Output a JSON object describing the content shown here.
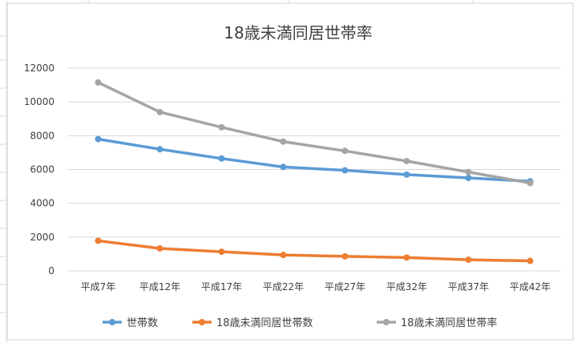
{
  "chart_data": {
    "type": "line",
    "title": "18歳未満同居世帯率",
    "categories": [
      "平成7年",
      "平成12年",
      "平成17年",
      "平成22年",
      "平成27年",
      "平成32年",
      "平成37年",
      "平成42年"
    ],
    "ylim": [
      0,
      12000
    ],
    "yticks": [
      0,
      2000,
      4000,
      6000,
      8000,
      10000,
      12000
    ],
    "grid": true,
    "legend_position": "bottom",
    "series": [
      {
        "name": "世帯数",
        "color": "#5B9BD5",
        "values": [
          7800,
          7200,
          6650,
          6150,
          5950,
          5700,
          5500,
          5300
        ]
      },
      {
        "name": "18歳未満同居世帯数",
        "color": "#ED7D31",
        "values": [
          1780,
          1330,
          1130,
          940,
          860,
          790,
          660,
          590
        ]
      },
      {
        "name": "18歳未満同居世帯率",
        "color": "#A5A5A5",
        "values": [
          11150,
          9400,
          8500,
          7650,
          7100,
          6500,
          5850,
          5200
        ]
      }
    ]
  }
}
